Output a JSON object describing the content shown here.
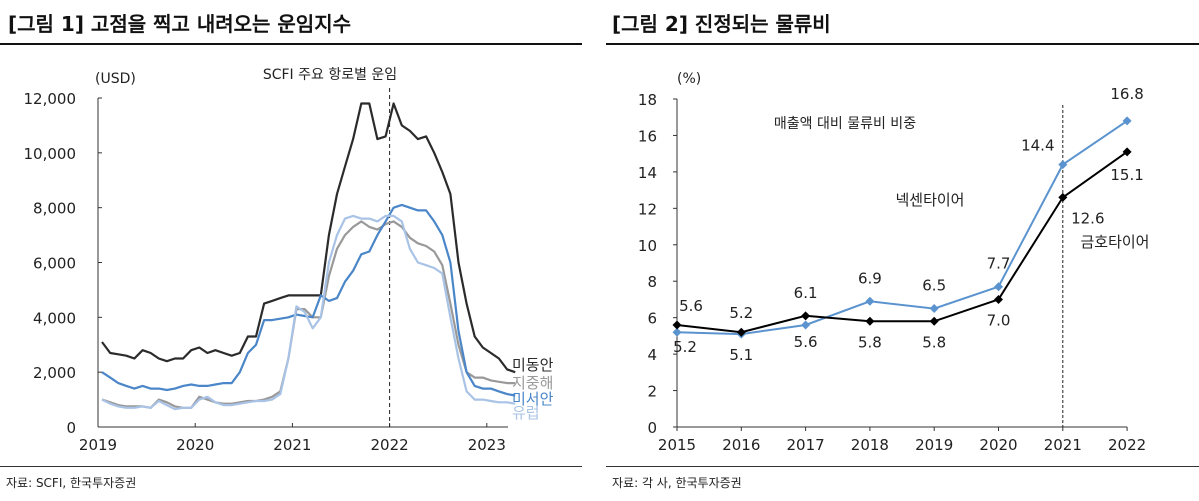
{
  "figure1": {
    "title": "[그림 1] 고점을 찍고 내려오는 운임지수",
    "source": "자료: SCFI, 한국투자증권"
  },
  "figure2": {
    "title": "[그림 2] 진정되는 물류비",
    "source": "자료: 각 사, 한국투자증권"
  },
  "chart_data": [
    {
      "type": "line",
      "title": "SCFI 주요 항로별 운임",
      "ylabel": "(USD)",
      "xlabel": "",
      "ylim": [
        0,
        12000
      ],
      "yticks": [
        "0",
        "2,000",
        "4,000",
        "6,000",
        "8,000",
        "10,000",
        "12,000"
      ],
      "ytick_values": [
        0,
        2000,
        4000,
        6000,
        8000,
        10000,
        12000
      ],
      "xticks": [
        "2019",
        "2020",
        "2021",
        "2022",
        "2023"
      ],
      "x_start": "2019-01",
      "x_frequency": "monthly",
      "x_end": "2023-04",
      "grid": false,
      "vline_at": "2022",
      "vline_style": "dashed",
      "legend_placement": "right end of lines",
      "series": [
        {
          "name": "미동안",
          "color": "#2b2b2b",
          "values": [
            3100,
            2700,
            2650,
            2600,
            2500,
            2800,
            2700,
            2500,
            2400,
            2500,
            2500,
            2800,
            2900,
            2700,
            2800,
            2700,
            2600,
            2700,
            3300,
            3300,
            4500,
            4600,
            4700,
            4800,
            4800,
            4800,
            4800,
            4800,
            7000,
            8500,
            9500,
            10500,
            11800,
            11800,
            10500,
            10600,
            11800,
            11000,
            10800,
            10500,
            10600,
            10000,
            9300,
            8500,
            6000,
            4500,
            3300,
            2900,
            2700,
            2500,
            2100,
            2000
          ]
        },
        {
          "name": "지중해",
          "color": "#999999",
          "values": [
            1000,
            900,
            800,
            750,
            750,
            750,
            700,
            1000,
            900,
            750,
            700,
            700,
            1100,
            1000,
            900,
            850,
            850,
            900,
            950,
            950,
            1000,
            1100,
            1300,
            2500,
            4300,
            4300,
            4000,
            4000,
            5500,
            6500,
            7000,
            7300,
            7500,
            7300,
            7200,
            7400,
            7500,
            7300,
            6900,
            6700,
            6600,
            6400,
            5900,
            4500,
            3000,
            2000,
            1800,
            1800,
            1700,
            1650,
            1600,
            1600
          ]
        },
        {
          "name": "미서안",
          "color": "#4a86c8",
          "values": [
            2000,
            1800,
            1600,
            1500,
            1400,
            1500,
            1400,
            1400,
            1350,
            1400,
            1500,
            1550,
            1500,
            1500,
            1550,
            1600,
            1600,
            2000,
            2700,
            3000,
            3900,
            3900,
            3950,
            4000,
            4100,
            4050,
            4000,
            4800,
            4600,
            4700,
            5300,
            5700,
            6300,
            6400,
            7000,
            7500,
            8000,
            8100,
            8000,
            7900,
            7900,
            7500,
            7000,
            6000,
            3500,
            2000,
            1500,
            1400,
            1400,
            1300,
            1200,
            1150
          ]
        },
        {
          "name": "유럽",
          "color": "#a9c3e6",
          "values": [
            1000,
            850,
            750,
            700,
            700,
            750,
            700,
            950,
            800,
            650,
            700,
            700,
            1000,
            1100,
            900,
            800,
            800,
            850,
            900,
            950,
            950,
            1000,
            1200,
            2500,
            4400,
            4200,
            3600,
            4000,
            6000,
            7000,
            7600,
            7700,
            7600,
            7600,
            7500,
            7700,
            7700,
            7500,
            6500,
            6000,
            5900,
            5800,
            5600,
            4000,
            2500,
            1300,
            1000,
            1000,
            950,
            900,
            900,
            850
          ]
        }
      ]
    },
    {
      "type": "line",
      "title": "매출액 대비 물류비 비중",
      "ylabel": "(%)",
      "xlabel": "",
      "ylim": [
        0,
        18
      ],
      "yticks": [
        "0",
        "2",
        "4",
        "6",
        "8",
        "10",
        "12",
        "14",
        "16",
        "18"
      ],
      "ytick_values": [
        0,
        2,
        4,
        6,
        8,
        10,
        12,
        14,
        16,
        18
      ],
      "categories": [
        "2015",
        "2016",
        "2017",
        "2018",
        "2019",
        "2020",
        "2021",
        "2022"
      ],
      "grid": false,
      "vline_at": "2021",
      "vline_style": "dashed",
      "marker": "diamond",
      "series": [
        {
          "name": "넥센타이어",
          "color": "#5b93cf",
          "values": [
            5.2,
            5.1,
            5.6,
            6.9,
            6.5,
            7.7,
            14.4,
            16.8
          ],
          "labels": [
            "5.2",
            "5.1",
            "5.6",
            "6.9",
            "6.5",
            "7.7",
            "14.4",
            "16.8"
          ]
        },
        {
          "name": "금호타이어",
          "color": "#000000",
          "values": [
            5.6,
            5.2,
            6.1,
            5.8,
            5.8,
            7.0,
            12.6,
            15.1
          ],
          "labels": [
            "5.6",
            "5.2",
            "6.1",
            "5.8",
            "5.8",
            "7.0",
            "12.6",
            "15.1"
          ]
        }
      ]
    }
  ]
}
